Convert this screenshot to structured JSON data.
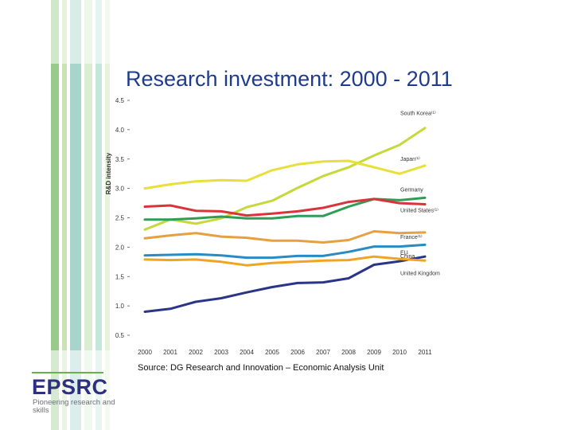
{
  "slide": {
    "title": "Research investment: 2000 - 2011",
    "source": "Source: DG Research and Innovation – Economic Analysis Unit",
    "logo": {
      "name": "EPSRC",
      "tagline": "Pioneering research and skills"
    },
    "colors": {
      "title": "#1f3c8c",
      "logo": "#2d2f7f"
    }
  },
  "chart_data": {
    "type": "line",
    "title": "",
    "xlabel": "",
    "ylabel": "R&D intensity",
    "x": [
      "2000",
      "2001",
      "2002",
      "2003",
      "2004",
      "2005",
      "2006",
      "2007",
      "2008",
      "2009",
      "2010",
      "2011"
    ],
    "yticks": [
      "0.5",
      "1.0",
      "1.5",
      "2.0",
      "2.5",
      "3.0",
      "3.5",
      "4.0",
      "4.5"
    ],
    "ylim": [
      0.5,
      4.5
    ],
    "grid": false,
    "legend": "labels at line ends (right)",
    "series": [
      {
        "name": "South Korea",
        "label": "South Korea⁽¹⁾",
        "color": "#c6d93b",
        "values": [
          2.3,
          2.47,
          2.4,
          2.49,
          2.68,
          2.79,
          3.01,
          3.21,
          3.36,
          3.56,
          3.74,
          4.03
        ]
      },
      {
        "name": "Japan",
        "label": "Japan⁽¹⁾",
        "color": "#e8e03a",
        "values": [
          3.0,
          3.07,
          3.12,
          3.14,
          3.13,
          3.31,
          3.41,
          3.46,
          3.47,
          3.36,
          3.25,
          3.39
        ]
      },
      {
        "name": "Germany",
        "label": "Germany",
        "color": "#2e9e57",
        "values": [
          2.47,
          2.47,
          2.49,
          2.52,
          2.49,
          2.49,
          2.53,
          2.53,
          2.69,
          2.82,
          2.8,
          2.84
        ]
      },
      {
        "name": "United States",
        "label": "United States⁽¹⁾",
        "color": "#d8343c",
        "values": [
          2.69,
          2.71,
          2.62,
          2.61,
          2.54,
          2.57,
          2.61,
          2.67,
          2.77,
          2.82,
          2.75,
          2.73
        ]
      },
      {
        "name": "France",
        "label": "France⁽¹⁾",
        "color": "#e7a040",
        "values": [
          2.15,
          2.2,
          2.24,
          2.18,
          2.16,
          2.11,
          2.11,
          2.08,
          2.12,
          2.27,
          2.24,
          2.25
        ]
      },
      {
        "name": "EU",
        "label": "EU",
        "color": "#2a8bc4",
        "values": [
          1.86,
          1.87,
          1.88,
          1.86,
          1.82,
          1.82,
          1.85,
          1.85,
          1.92,
          2.01,
          2.01,
          2.04
        ]
      },
      {
        "name": "China",
        "label": "China",
        "color": "#2a3488",
        "values": [
          0.9,
          0.95,
          1.07,
          1.13,
          1.23,
          1.32,
          1.39,
          1.4,
          1.47,
          1.7,
          1.76,
          1.84
        ]
      },
      {
        "name": "United Kingdom",
        "label": "United Kingdom",
        "color": "#f0a422",
        "values": [
          1.79,
          1.78,
          1.79,
          1.75,
          1.69,
          1.73,
          1.75,
          1.77,
          1.78,
          1.84,
          1.8,
          1.77
        ]
      }
    ],
    "line_labels": [
      "South Korea⁽¹⁾",
      "Japan⁽¹⁾",
      "Germany",
      "United States⁽¹⁾",
      "France⁽¹⁾",
      "EU",
      "China",
      "United Kingdom"
    ]
  }
}
